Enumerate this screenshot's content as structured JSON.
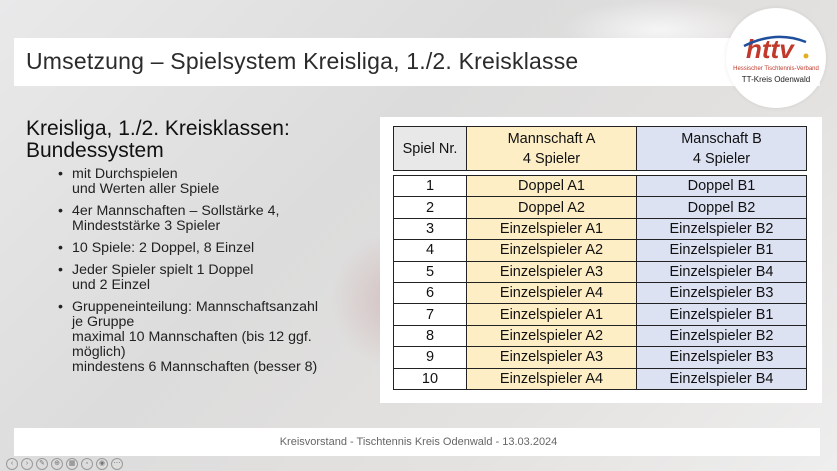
{
  "slide": {
    "title": "Umsetzung – Spielsystem Kreisliga, 1./2. Kreisklasse",
    "heading_line1": "Kreisliga, 1./2. Kreisklassen:",
    "heading_line2": "Bundessystem",
    "bullets": [
      "mit Durchspielen\nund Werten aller Spiele",
      "4er Mannschaften – Sollstärke 4,\nMindeststärke 3 Spieler",
      "10 Spiele: 2 Doppel, 8 Einzel",
      "Jeder Spieler spielt 1 Doppel\nund 2 Einzel",
      "Gruppeneinteilung: Mannschaftsanzahl\nje Gruppe\nmaximal 10 Mannschaften (bis 12 ggf.\nmöglich)\nmindestens 6 Mannschaften (besser 8)"
    ],
    "footer": "Kreisvorstand  -  Tischtennis Kreis Odenwald  -  13.03.2024"
  },
  "logo": {
    "letters": "httv",
    "subtitle": "Hessischer Tischtennis-Verband",
    "org": "TT-Kreis  Odenwald"
  },
  "table": {
    "header": {
      "nr": "Spiel Nr.",
      "a_line1": "Mannschaft A",
      "a_line2": "4 Spieler",
      "b_line1": "Manschaft B",
      "b_line2": "4 Spieler"
    },
    "rows": [
      {
        "nr": "1",
        "a": "Doppel A1",
        "b": "Doppel B1"
      },
      {
        "nr": "2",
        "a": "Doppel A2",
        "b": "Doppel B2"
      },
      {
        "nr": "3",
        "a": "Einzelspieler A1",
        "b": "Einzelspieler B2"
      },
      {
        "nr": "4",
        "a": "Einzelspieler A2",
        "b": "Einzelspieler B1"
      },
      {
        "nr": "5",
        "a": "Einzelspieler A3",
        "b": "Einzelspieler B4"
      },
      {
        "nr": "6",
        "a": "Einzelspieler A4",
        "b": "Einzelspieler B3"
      },
      {
        "nr": "7",
        "a": "Einzelspieler A1",
        "b": "Einzelspieler B1"
      },
      {
        "nr": "8",
        "a": "Einzelspieler A2",
        "b": "Einzelspieler B2"
      },
      {
        "nr": "9",
        "a": "Einzelspieler A3",
        "b": "Einzelspieler B3"
      },
      {
        "nr": "10",
        "a": "Einzelspieler A4",
        "b": "Einzelspieler B4"
      }
    ]
  },
  "colors": {
    "team_a": "#fdeec6",
    "team_b": "#dde2f3",
    "logo_red": "#c0392b",
    "logo_blue": "#1f4e9c"
  },
  "toolbar_icons": [
    "prev-icon",
    "next-icon",
    "pen-icon",
    "zoom-icon",
    "grid-icon",
    "subtitle-icon",
    "camera-icon",
    "more-icon"
  ]
}
